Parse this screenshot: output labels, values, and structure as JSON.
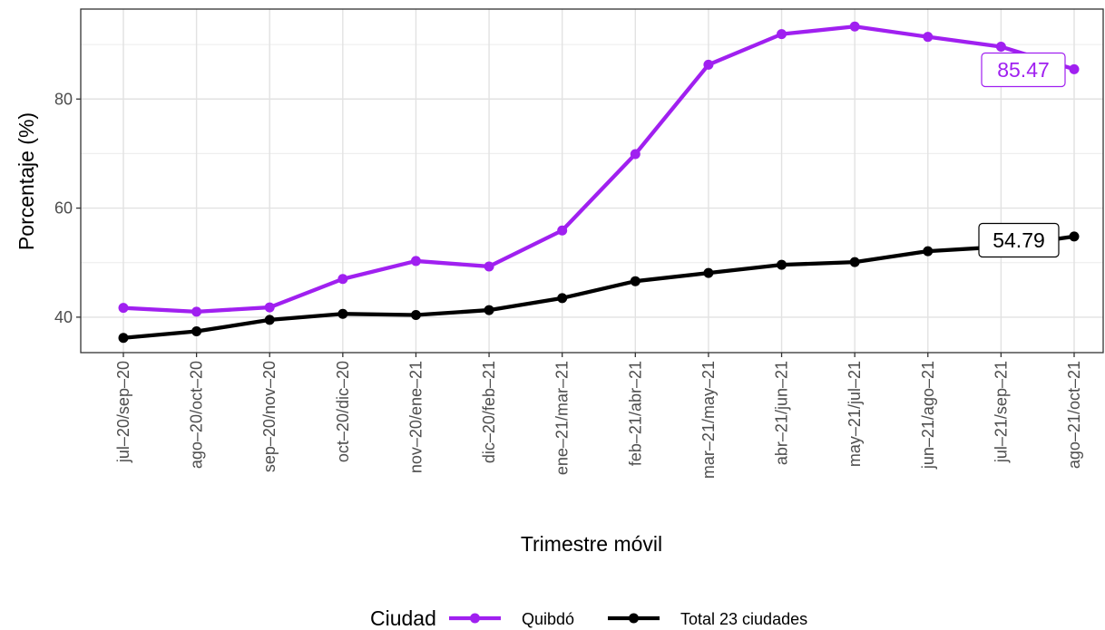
{
  "chart_data": {
    "type": "line",
    "xlabel": "Trimestre móvil",
    "ylabel": "Porcentaje (%)",
    "ylim": [
      33.5,
      96.5
    ],
    "yticks": [
      40,
      60,
      80
    ],
    "grid": true,
    "legend_position": "bottom",
    "legend_title": "Ciudad",
    "categories": [
      "jul–20/sep–20",
      "ago–20/oct–20",
      "sep–20/nov–20",
      "oct–20/dic–20",
      "nov–20/ene–21",
      "dic–20/feb–21",
      "ene–21/mar–21",
      "feb–21/abr–21",
      "mar–21/may–21",
      "abr–21/jun–21",
      "may–21/jul–21",
      "jun–21/ago–21",
      "jul–21/sep–21",
      "ago–21/oct–21"
    ],
    "series": [
      {
        "name": "Quibdó",
        "color": "#a020f0",
        "values": [
          41.7,
          41.0,
          41.8,
          47.0,
          50.3,
          49.3,
          55.9,
          69.9,
          86.3,
          91.9,
          93.3,
          91.4,
          89.6,
          85.47
        ],
        "end_label": "85.47"
      },
      {
        "name": "Total 23 ciudades",
        "color": "#000000",
        "values": [
          36.2,
          37.4,
          39.5,
          40.6,
          40.4,
          41.3,
          43.5,
          46.6,
          48.1,
          49.6,
          50.1,
          52.1,
          52.9,
          54.79
        ],
        "end_label": "54.79"
      }
    ]
  }
}
